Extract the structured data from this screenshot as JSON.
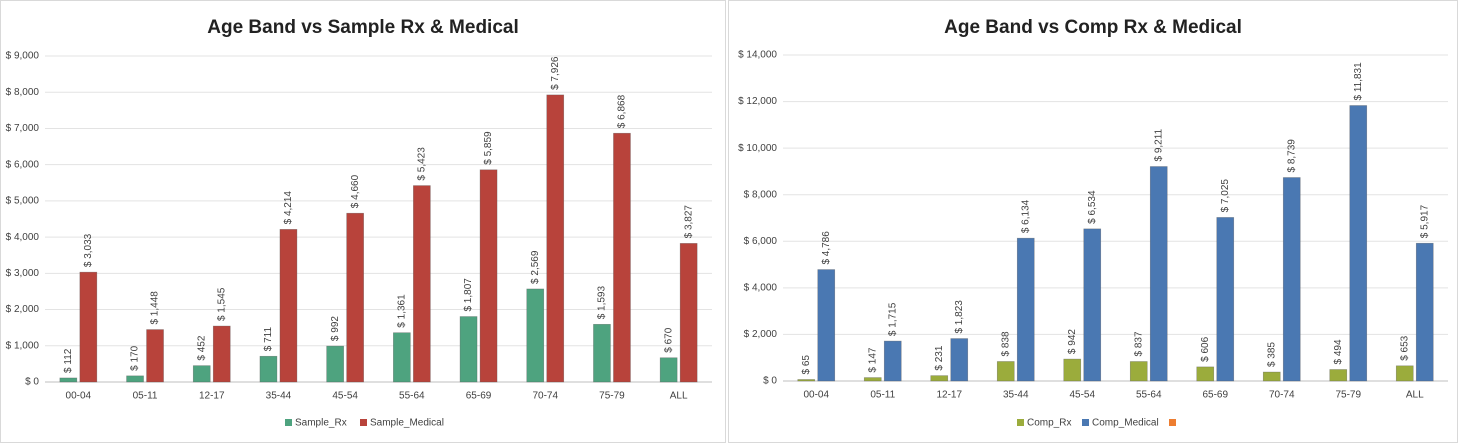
{
  "chart_data": [
    {
      "type": "bar",
      "title": "Age Band vs Sample Rx & Medical",
      "categories": [
        "00-04",
        "05-11",
        "12-17",
        "35-44",
        "45-54",
        "55-64",
        "65-69",
        "70-74",
        "75-79",
        "ALL"
      ],
      "series": [
        {
          "name": "Sample_Rx",
          "color": "#4ea37f",
          "values": [
            112,
            170,
            452,
            711,
            992,
            1361,
            1807,
            2569,
            1593,
            670
          ],
          "value_labels": [
            "$ 112",
            "$ 170",
            "$ 452",
            "$ 711",
            "$ 992",
            "$ 1,361",
            "$ 1,807",
            "$ 2,569",
            "$ 1,593",
            "$ 670"
          ]
        },
        {
          "name": "Sample_Medical",
          "color": "#b8433b",
          "values": [
            3033,
            1448,
            1545,
            4214,
            4660,
            5423,
            5859,
            7926,
            6868,
            3827
          ],
          "value_labels": [
            "$ 3,033",
            "$ 1,448",
            "$ 1,545",
            "$ 4,214",
            "$ 4,660",
            "$ 5,423",
            "$ 5,859",
            "$ 7,926",
            "$ 6,868",
            "$ 3,827"
          ]
        }
      ],
      "ylim": [
        0,
        9000
      ],
      "yticks": [
        {
          "value": 0,
          "label": "$ 0"
        },
        {
          "value": 1000,
          "label": "$ 1,000"
        },
        {
          "value": 2000,
          "label": "$ 2,000"
        },
        {
          "value": 3000,
          "label": "$ 3,000"
        },
        {
          "value": 4000,
          "label": "$ 4,000"
        },
        {
          "value": 5000,
          "label": "$ 5,000"
        },
        {
          "value": 6000,
          "label": "$ 6,000"
        },
        {
          "value": 7000,
          "label": "$ 7,000"
        },
        {
          "value": 8000,
          "label": "$ 8,000"
        },
        {
          "value": 9000,
          "label": "$ 9,000"
        }
      ],
      "grid": true,
      "legend": "bottom"
    },
    {
      "type": "bar",
      "title": "Age Band vs Comp Rx & Medical",
      "categories": [
        "00-04",
        "05-11",
        "12-17",
        "35-44",
        "45-54",
        "55-64",
        "65-69",
        "70-74",
        "75-79",
        "ALL"
      ],
      "series": [
        {
          "name": "Comp_Rx",
          "color": "#9bac3c",
          "values": [
            65,
            147,
            231,
            838,
            942,
            837,
            606,
            385,
            494,
            653
          ],
          "value_labels": [
            "$ 65",
            "$ 147",
            "$ 231",
            "$ 838",
            "$ 942",
            "$ 837",
            "$ 606",
            "$ 385",
            "$ 494",
            "$ 653"
          ]
        },
        {
          "name": "Comp_Medical",
          "color": "#4a78b2",
          "values": [
            4786,
            1715,
            1823,
            6134,
            6534,
            9211,
            7025,
            8739,
            11831,
            5917
          ],
          "value_labels": [
            "$ 4,786",
            "$ 1,715",
            "$ 1,823",
            "$ 6,134",
            "$ 6,534",
            "$ 9,211",
            "$ 7,025",
            "$ 8,739",
            "$ 11,831",
            "$ 5,917"
          ]
        }
      ],
      "ylim": [
        0,
        14000
      ],
      "yticks": [
        {
          "value": 0,
          "label": "$ 0"
        },
        {
          "value": 2000,
          "label": "$ 2,000"
        },
        {
          "value": 4000,
          "label": "$ 4,000"
        },
        {
          "value": 6000,
          "label": "$ 6,000"
        },
        {
          "value": 8000,
          "label": "$ 8,000"
        },
        {
          "value": 10000,
          "label": "$ 10,000"
        },
        {
          "value": 12000,
          "label": "$ 12,000"
        },
        {
          "value": 14000,
          "label": "$ 14,000"
        }
      ],
      "grid": true,
      "legend": "bottom"
    }
  ]
}
